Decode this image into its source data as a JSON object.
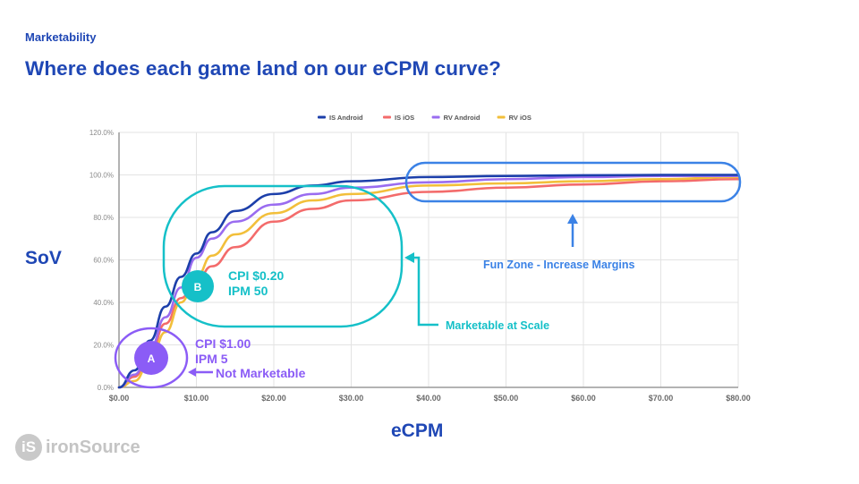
{
  "header": {
    "kicker": "Marketability",
    "title": "Where does each game land on our eCPM curve?"
  },
  "axis_labels": {
    "y": "SoV",
    "x": "eCPM"
  },
  "logo": {
    "mark": "iS",
    "text": "ironSource"
  },
  "legend": [
    {
      "label": "IS Android",
      "color": "#1c3faa"
    },
    {
      "label": "IS iOS",
      "color": "#f36b6b"
    },
    {
      "label": "RV Android",
      "color": "#9a6cf0"
    },
    {
      "label": "RV iOS",
      "color": "#f2bf3a"
    }
  ],
  "annotations": {
    "point_a": {
      "marker": "A",
      "line1": "CPI $1.00",
      "line2": "IPM 5",
      "callout": "Not Marketable",
      "color": "#8b5cf6"
    },
    "point_b": {
      "marker": "B",
      "line1": "CPI $0.20",
      "line2": "IPM 50",
      "color": "#15c0c8"
    },
    "marketable": {
      "label": "Marketable at Scale",
      "color": "#15c0c8"
    },
    "fun_zone": {
      "label": "Fun Zone - Increase Margins",
      "color": "#3b82e6"
    }
  },
  "chart_data": {
    "type": "line",
    "title": "",
    "xlabel": "eCPM",
    "ylabel": "SoV",
    "xlim": [
      0,
      80
    ],
    "ylim": [
      0,
      120
    ],
    "x_ticks": [
      "$0.00",
      "$10.00",
      "$20.00",
      "$30.00",
      "$40.00",
      "$50.00",
      "$60.00",
      "$70.00",
      "$80.00"
    ],
    "y_ticks": [
      "0.0%",
      "20.0%",
      "40.0%",
      "60.0%",
      "80.0%",
      "100.0%",
      "120.0%"
    ],
    "grid": true,
    "legend_position": "top",
    "x": [
      0,
      2,
      4,
      6,
      8,
      10,
      12,
      15,
      20,
      25,
      30,
      40,
      50,
      60,
      70,
      80
    ],
    "series": [
      {
        "name": "IS Android",
        "color": "#1c3faa",
        "values": [
          0,
          8,
          22,
          38,
          52,
          63,
          73,
          83,
          91,
          95,
          97,
          99,
          99.5,
          99.8,
          100,
          100
        ]
      },
      {
        "name": "IS iOS",
        "color": "#f36b6b",
        "values": [
          0,
          5,
          16,
          30,
          42,
          50,
          57,
          66,
          78,
          84,
          88,
          92,
          94,
          95.5,
          97,
          98
        ]
      },
      {
        "name": "RV Android",
        "color": "#9a6cf0",
        "values": [
          0,
          6,
          18,
          33,
          47,
          61,
          70,
          78,
          86,
          91,
          94,
          96.5,
          98,
          99,
          99.5,
          99.5
        ]
      },
      {
        "name": "RV iOS",
        "color": "#f2bf3a",
        "values": [
          0,
          3,
          12,
          26,
          40,
          52,
          62,
          72,
          82,
          88,
          91,
          95,
          96,
          97,
          98,
          99
        ]
      }
    ],
    "annotations": [
      {
        "text": "A — CPI $1.00, IPM 5",
        "x": 4.2,
        "y": 15
      },
      {
        "text": "B — CPI $0.20, IPM 50",
        "x": 10,
        "y": 48
      },
      {
        "text": "Not Marketable"
      },
      {
        "text": "Marketable at Scale"
      },
      {
        "text": "Fun Zone - Increase Margins"
      }
    ]
  }
}
